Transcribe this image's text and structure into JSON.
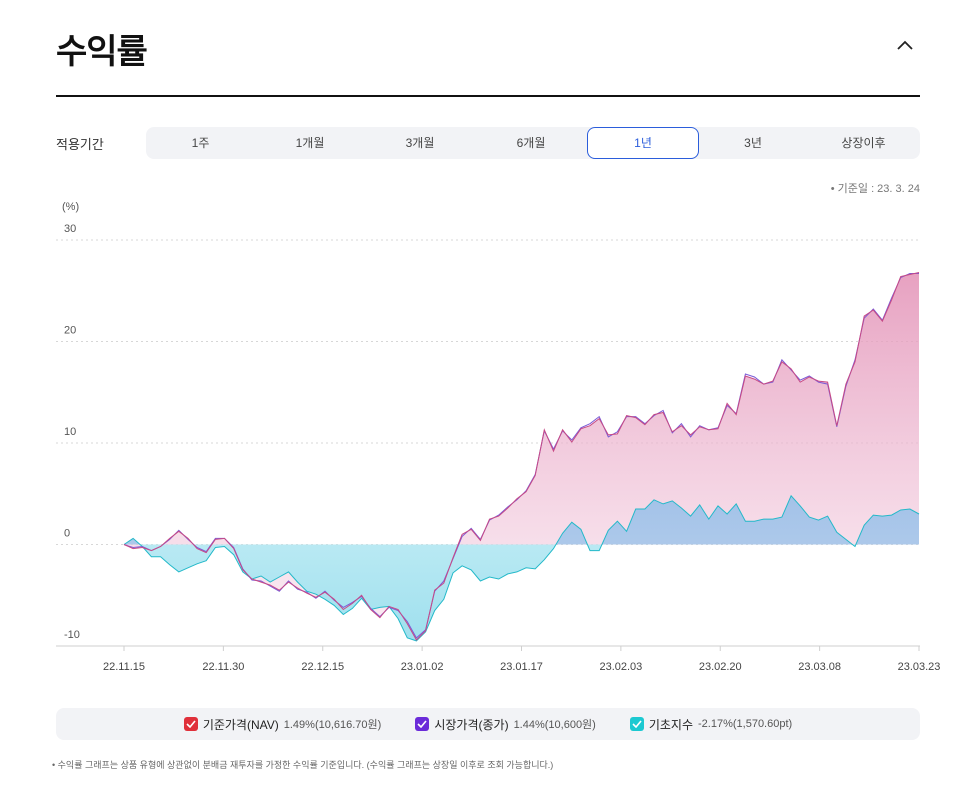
{
  "header": {
    "title": "수익률"
  },
  "period": {
    "label": "적용기간",
    "tabs": [
      "1주",
      "1개월",
      "3개월",
      "6개월",
      "1년",
      "3년",
      "상장이후"
    ],
    "active_index": 4
  },
  "reference_date": "• 기준일 : 23. 3. 24",
  "legend": [
    {
      "name": "기준가격(NAV)",
      "value": "1.49%(10,616.70원)",
      "color": "#e0303a"
    },
    {
      "name": "시장가격(종가)",
      "value": "1.44%(10,600원)",
      "color": "#6b2bd9"
    },
    {
      "name": "기초지수",
      "value": "-2.17%(1,570.60pt)",
      "color": "#1cc9d1"
    }
  ],
  "footnote": "• 수익률 그래프는 상품 유형에 상관없이 분배금 재투자를 가정한 수익률 기준입니다. (수익률 그래프는 상장일 이후로 조회 가능합니다.)",
  "chart_data": {
    "type": "area",
    "ylabel": "(%)",
    "ylim": [
      -10,
      30
    ],
    "yticks": [
      30,
      20,
      10,
      0,
      -10
    ],
    "xticks": [
      "22.11.15",
      "22.11.30",
      "22.12.15",
      "23.01.02",
      "23.01.17",
      "23.02.03",
      "23.02.20",
      "23.03.08",
      "23.03.23"
    ],
    "grid": true,
    "colors": {
      "nav_line": "#c74a85",
      "nav_fill": "#e8a3c2",
      "market_line": "#7b5bd6",
      "index_line": "#23b9c9",
      "index_fill": "#a6e0ef"
    },
    "series": [
      {
        "name": "기준가격(NAV)",
        "values": [
          0,
          -0.4,
          -0.3,
          -0.6,
          -0.2,
          0.6,
          1.3,
          0.6,
          -0.4,
          -0.8,
          0.5,
          0.6,
          -0.4,
          -2.5,
          -3.4,
          -3.7,
          -4,
          -4.5,
          -3.7,
          -4.3,
          -4.8,
          -5.2,
          -4.7,
          -5.4,
          -6.4,
          -5.8,
          -5,
          -6.4,
          -7.2,
          -6.1,
          -6.4,
          -7.8,
          -9.4,
          -8.5,
          -4.5,
          -3.8,
          -1.3,
          1,
          1.5,
          0.4,
          2.5,
          2.8,
          3.6,
          4.5,
          5.2,
          6.8,
          11.3,
          9.2,
          11.3,
          10.1,
          11.4,
          11.7,
          12.4,
          10.8,
          10.9,
          12.7,
          12.5,
          11.8,
          12.8,
          13,
          11.1,
          11.7,
          10.8,
          11.6,
          11.3,
          11.4,
          13.9,
          12.8,
          16.6,
          16.3,
          15.8,
          16.1,
          18,
          17.3,
          16,
          16.5,
          16.1,
          16,
          11.7,
          15.8,
          18,
          22.5,
          23.1,
          22,
          24.1,
          26.4,
          26.6,
          26.8
        ]
      },
      {
        "name": "시장가격(종가)",
        "values": [
          0,
          -0.3,
          -0.2,
          -0.6,
          -0.2,
          0.5,
          1.4,
          0.5,
          -0.3,
          -0.7,
          0.6,
          0.6,
          -0.3,
          -2.4,
          -3.5,
          -3.6,
          -4.1,
          -4.6,
          -3.6,
          -4.4,
          -4.7,
          -5.3,
          -4.6,
          -5.5,
          -6.2,
          -5.7,
          -5.1,
          -6.3,
          -7.1,
          -6.2,
          -6.5,
          -7.6,
          -9.2,
          -8.4,
          -4.6,
          -3.6,
          -1.4,
          0.8,
          1.6,
          0.5,
          2.4,
          2.9,
          3.7,
          4.4,
          5.3,
          6.9,
          11.2,
          9.4,
          11.2,
          10.3,
          11.5,
          11.9,
          12.6,
          10.6,
          11.1,
          12.6,
          12.6,
          11.9,
          12.7,
          13.2,
          11,
          11.9,
          10.6,
          11.7,
          11.3,
          11.5,
          13.7,
          12.9,
          16.8,
          16.5,
          15.8,
          16,
          18.2,
          17.2,
          16.2,
          16.6,
          16,
          15.8,
          11.6,
          15.6,
          18.2,
          22.3,
          23.2,
          22.1,
          24.3,
          26.3,
          26.7,
          26.7
        ]
      },
      {
        "name": "기초지수",
        "values": [
          0,
          0.6,
          -0.2,
          -1.2,
          -1.2,
          -2,
          -2.7,
          -2.3,
          -1.9,
          -1.6,
          -0.3,
          -0.2,
          -1,
          -2.7,
          -3.4,
          -3.1,
          -3.7,
          -3.2,
          -2.7,
          -3.7,
          -4.6,
          -4.9,
          -5.4,
          -6,
          -6.9,
          -6.3,
          -5.3,
          -6.4,
          -6.2,
          -6.1,
          -7.3,
          -9.2,
          -9.5,
          -8.6,
          -6.5,
          -5.4,
          -2.8,
          -2.1,
          -2.5,
          -3.6,
          -3.2,
          -3.4,
          -2.9,
          -2.7,
          -2.3,
          -2.4,
          -1.5,
          -0.4,
          1.1,
          2.2,
          1.5,
          -0.6,
          -0.6,
          1.4,
          2.3,
          1.3,
          3.5,
          3.5,
          4.4,
          4,
          4.3,
          3.6,
          2.8,
          3.9,
          2.5,
          3.8,
          3,
          4,
          2.3,
          2.3,
          2.5,
          2.5,
          2.7,
          4.8,
          3.8,
          2.7,
          2.4,
          2.8,
          1.2,
          0.5,
          -0.2,
          1.9,
          2.9,
          2.8,
          2.9,
          3.4,
          3.5,
          3
        ]
      }
    ]
  }
}
